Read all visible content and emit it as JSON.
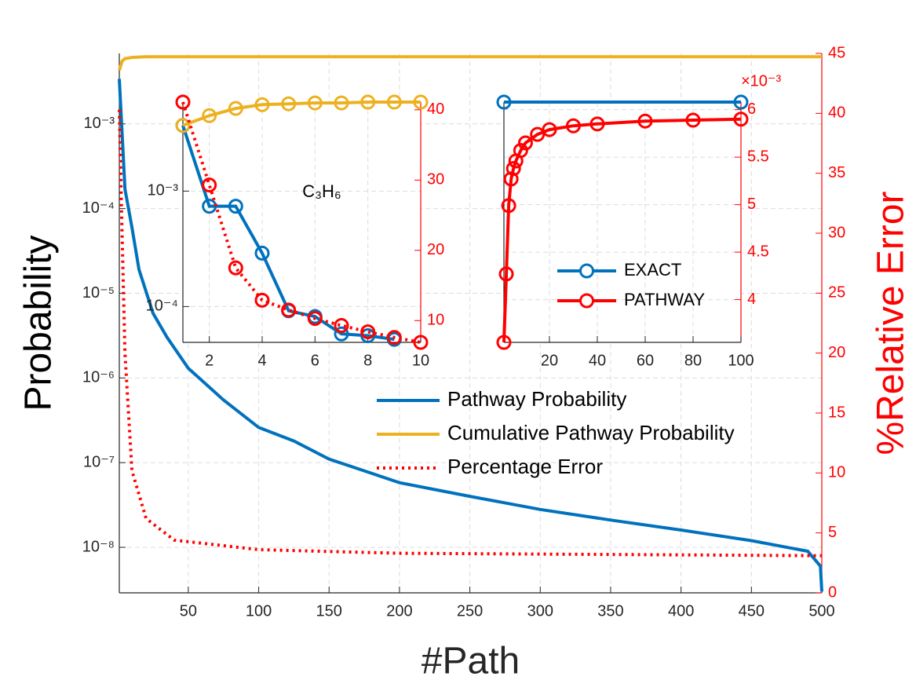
{
  "chart_data": [
    {
      "type": "line",
      "xlabel": "#Path",
      "ylabel": "Probability",
      "y2label": "%Relative Error",
      "xlim": [
        1,
        500
      ],
      "xticks": [
        50,
        100,
        150,
        200,
        250,
        300,
        350,
        400,
        450,
        500
      ],
      "yscale": "log",
      "ylim": [
        2.9e-09,
        0.0068
      ],
      "yticks": [
        {
          "value": 1e-08,
          "label": "10⁻⁸"
        },
        {
          "value": 1e-07,
          "label": "10⁻⁷"
        },
        {
          "value": 1e-06,
          "label": "10⁻⁶"
        },
        {
          "value": 1e-05,
          "label": "10⁻⁵"
        },
        {
          "value": 0.0001,
          "label": "10⁻⁴"
        },
        {
          "value": 0.001,
          "label": "10⁻³"
        }
      ],
      "y2lim": [
        0,
        45
      ],
      "y2ticks": [
        0,
        5,
        10,
        15,
        20,
        25,
        30,
        35,
        40,
        45
      ],
      "y2color": "#ff0000",
      "grid": true,
      "legend": "center-right",
      "series": [
        {
          "name": "Pathway Probability",
          "color": "#0072bd",
          "axis": "y",
          "x": [
            1,
            5,
            10,
            15,
            25,
            35,
            50,
            75,
            100,
            125,
            150,
            175,
            200,
            250,
            300,
            350,
            400,
            450,
            490,
            499,
            500
          ],
          "values": [
            0.0034,
            0.00017,
            6e-05,
            1.9e-05,
            5.8e-06,
            3e-06,
            1.3e-06,
            5.5e-07,
            2.6e-07,
            1.8e-07,
            1.1e-07,
            8e-08,
            5.8e-08,
            4e-08,
            2.8e-08,
            2.1e-08,
            1.6e-08,
            1.2e-08,
            9e-09,
            6e-09,
            3e-09
          ]
        },
        {
          "name": "Cumulative Pathway Probability",
          "color": "#edb120",
          "axis": "y",
          "x": [
            1,
            3,
            5,
            10,
            20,
            500
          ],
          "values": [
            0.0043,
            0.0055,
            0.0059,
            0.0061,
            0.0062,
            0.0062
          ]
        },
        {
          "name": "Percentage Error",
          "color": "#ff0000",
          "axis": "y2",
          "linestyle": "dotted",
          "x": [
            1,
            3,
            5,
            10,
            20,
            40,
            100,
            200,
            500
          ],
          "values": [
            40.3,
            29.8,
            20,
            10.2,
            6.2,
            4.4,
            3.6,
            3.3,
            3.1
          ]
        }
      ]
    },
    {
      "type": "line",
      "annotation": "C₃H₆",
      "xlim": [
        1,
        10
      ],
      "xticks": [
        2,
        4,
        6,
        8,
        10
      ],
      "yscale": "log",
      "ylim": [
        4.9e-05,
        0.0059
      ],
      "yticks": [
        {
          "value": 0.0001,
          "label": "10⁻⁴"
        },
        {
          "value": 0.001,
          "label": "10⁻³"
        }
      ],
      "y2lim": [
        6.9,
        41.1
      ],
      "y2ticks": [
        10,
        20,
        30,
        40
      ],
      "y2color": "#ff0000",
      "grid": true,
      "series": [
        {
          "color": "#0072bd",
          "axis": "y",
          "marker": "o",
          "x": [
            1,
            2,
            3,
            4,
            5,
            6,
            7,
            8,
            9
          ],
          "values": [
            0.0037,
            0.00074,
            0.00074,
            0.00029,
            9.2e-05,
            8.2e-05,
            5.8e-05,
            5.6e-05,
            5.2e-05
          ]
        },
        {
          "color": "#edb120",
          "axis": "y",
          "marker": "o",
          "x": [
            1,
            2,
            3,
            4,
            5,
            6,
            7,
            8,
            9,
            10
          ],
          "values": [
            0.0037,
            0.0045,
            0.0052,
            0.0056,
            0.0057,
            0.0058,
            0.0058,
            0.0059,
            0.0059,
            0.0059
          ]
        },
        {
          "color": "#ff0000",
          "axis": "y2",
          "marker": "o",
          "linestyle": "dotted",
          "x": [
            1,
            2,
            3,
            4,
            5,
            6,
            7,
            8,
            9,
            10
          ],
          "values": [
            41.1,
            29.3,
            17.5,
            12.9,
            11.5,
            10.3,
            9.3,
            8.4,
            7.6,
            6.9
          ]
        }
      ]
    },
    {
      "type": "line",
      "xlim": [
        1,
        100
      ],
      "xticks": [
        20,
        40,
        60,
        80,
        100
      ],
      "y2lim": [
        3.55,
        6.08
      ],
      "y2ticks": [
        4,
        4.5,
        5,
        5.5,
        6
      ],
      "y2color": "#ff0000",
      "y2_multiplier": "×10⁻³",
      "grid": true,
      "legend": "lower-right",
      "series": [
        {
          "name": "EXACT",
          "color": "#0072bd",
          "axis": "y2",
          "marker": "o",
          "x": [
            1,
            100
          ],
          "values": [
            6.08,
            6.08
          ]
        },
        {
          "name": "PATHWAY",
          "color": "#ff0000",
          "axis": "y2",
          "marker": "o",
          "x": [
            1,
            2,
            3,
            4,
            5,
            6,
            8,
            10,
            15,
            20,
            30,
            40,
            60,
            80,
            100
          ],
          "values": [
            3.55,
            4.27,
            4.99,
            5.27,
            5.38,
            5.46,
            5.57,
            5.65,
            5.74,
            5.79,
            5.83,
            5.85,
            5.88,
            5.89,
            5.9
          ]
        }
      ]
    }
  ]
}
